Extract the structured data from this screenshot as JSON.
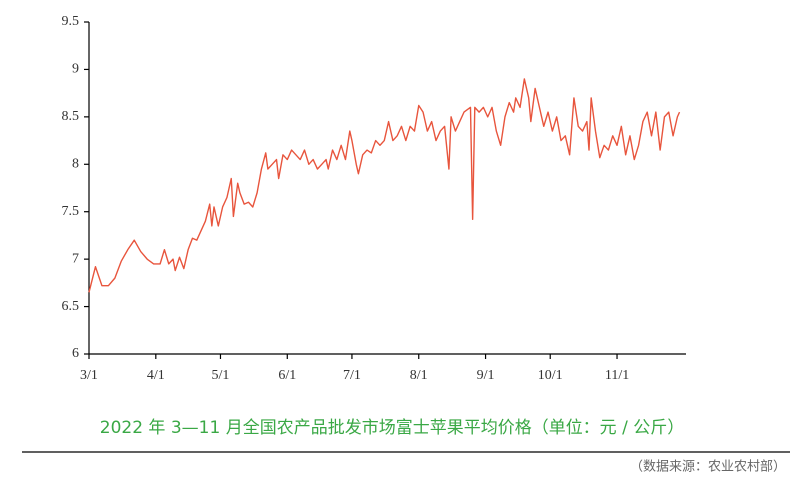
{
  "chart_data": {
    "type": "line",
    "title": "2022 年 3—11 月全国农产品批发市场富士苹果平均价格（单位：元 / 公斤）",
    "source": "（数据来源：农业农村部）",
    "x": [
      "3/1",
      "3/4",
      "3/7",
      "3/10",
      "3/13",
      "3/16",
      "3/19",
      "3/22",
      "3/25",
      "3/28",
      "3/31",
      "4/3",
      "4/5",
      "4/7",
      "4/9",
      "4/10",
      "4/12",
      "4/14",
      "4/16",
      "4/18",
      "4/20",
      "4/22",
      "4/24",
      "4/26",
      "4/27",
      "4/28",
      "4/30",
      "5/2",
      "5/4",
      "5/6",
      "5/7",
      "5/9",
      "5/10",
      "5/12",
      "5/14",
      "5/16",
      "5/18",
      "5/20",
      "5/22",
      "5/23",
      "5/25",
      "5/27",
      "5/28",
      "5/30",
      "6/1",
      "6/3",
      "6/5",
      "6/7",
      "6/9",
      "6/11",
      "6/13",
      "6/15",
      "6/17",
      "6/19",
      "6/20",
      "6/22",
      "6/24",
      "6/26",
      "6/28",
      "6/30",
      "7/1",
      "7/3",
      "7/4",
      "7/6",
      "7/8",
      "7/10",
      "7/12",
      "7/14",
      "7/16",
      "7/18",
      "7/20",
      "7/22",
      "7/24",
      "7/26",
      "7/28",
      "7/30",
      "8/1",
      "8/3",
      "8/5",
      "8/7",
      "8/9",
      "8/11",
      "8/13",
      "8/15",
      "8/16",
      "8/18",
      "8/20",
      "8/22",
      "8/25",
      "8/26",
      "8/27",
      "8/29",
      "8/31",
      "9/2",
      "9/4",
      "9/6",
      "9/8",
      "9/10",
      "9/12",
      "9/14",
      "9/15",
      "9/17",
      "9/19",
      "9/21",
      "9/22",
      "9/24",
      "9/26",
      "9/28",
      "9/30",
      "10/2",
      "10/4",
      "10/6",
      "10/8",
      "10/10",
      "10/12",
      "10/14",
      "10/16",
      "10/18",
      "10/19",
      "10/20",
      "10/22",
      "10/24",
      "10/26",
      "10/28",
      "10/30",
      "11/1",
      "11/3",
      "11/5",
      "11/7",
      "11/9",
      "11/11",
      "11/13",
      "11/15",
      "11/17",
      "11/19",
      "11/21",
      "11/23",
      "11/25",
      "11/27",
      "11/29",
      "11/30"
    ],
    "series": [
      {
        "name": "富士苹果平均价格",
        "color": "#e8553d",
        "values": [
          6.65,
          6.92,
          6.72,
          6.72,
          6.8,
          6.98,
          7.1,
          7.2,
          7.08,
          7.0,
          6.95,
          6.95,
          7.1,
          6.95,
          7.0,
          6.88,
          7.02,
          6.9,
          7.1,
          7.22,
          7.2,
          7.3,
          7.4,
          7.58,
          7.35,
          7.55,
          7.35,
          7.55,
          7.65,
          7.85,
          7.45,
          7.8,
          7.7,
          7.58,
          7.6,
          7.55,
          7.7,
          7.95,
          8.12,
          7.95,
          8.0,
          8.05,
          7.85,
          8.1,
          8.05,
          8.15,
          8.1,
          8.05,
          8.15,
          8.0,
          8.05,
          7.95,
          8.0,
          8.05,
          7.95,
          8.15,
          8.05,
          8.2,
          8.05,
          8.35,
          8.25,
          8.0,
          7.9,
          8.1,
          8.15,
          8.12,
          8.25,
          8.2,
          8.25,
          8.45,
          8.25,
          8.3,
          8.4,
          8.25,
          8.4,
          8.35,
          8.62,
          8.55,
          8.35,
          8.45,
          8.25,
          8.35,
          8.4,
          7.95,
          8.5,
          8.35,
          8.45,
          8.55,
          8.6,
          7.42,
          8.6,
          8.55,
          8.6,
          8.5,
          8.6,
          8.35,
          8.2,
          8.5,
          8.65,
          8.55,
          8.7,
          8.6,
          8.9,
          8.7,
          8.45,
          8.8,
          8.6,
          8.4,
          8.55,
          8.35,
          8.5,
          8.25,
          8.3,
          8.1,
          8.7,
          8.4,
          8.35,
          8.45,
          8.15,
          8.7,
          8.35,
          8.07,
          8.2,
          8.15,
          8.3,
          8.2,
          8.4,
          8.1,
          8.3,
          8.05,
          8.2,
          8.45,
          8.55,
          8.3,
          8.55,
          8.15,
          8.5,
          8.55,
          8.3,
          8.5,
          8.55
        ]
      }
    ],
    "xlim": [
      "3/1",
      "12/3"
    ],
    "xticks": [
      "3/1",
      "4/1",
      "5/1",
      "6/1",
      "7/1",
      "8/1",
      "9/1",
      "10/1",
      "11/1"
    ],
    "ylim": [
      6,
      9.5
    ],
    "yticks": [
      6,
      6.5,
      7,
      7.5,
      8,
      8.5,
      9,
      9.5
    ]
  }
}
